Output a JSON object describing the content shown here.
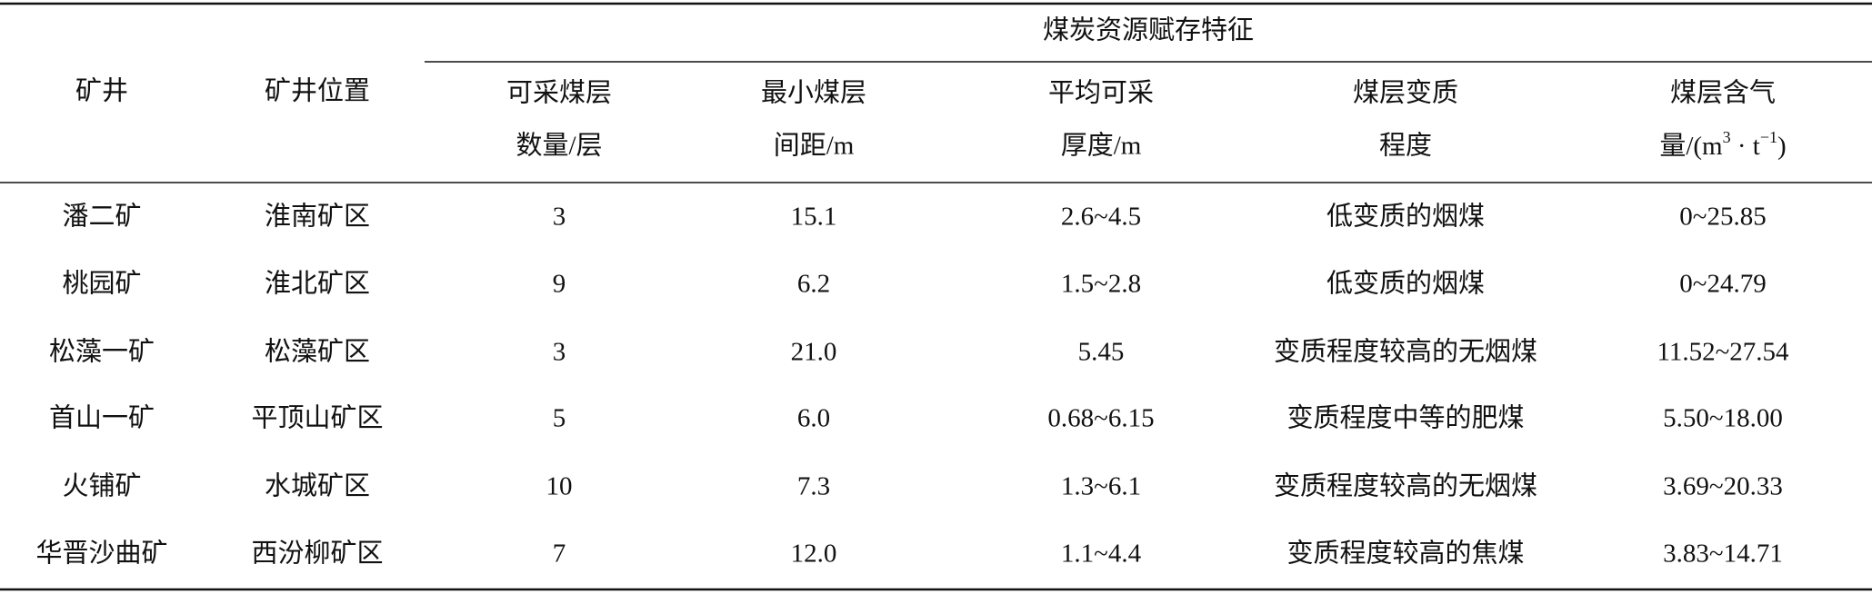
{
  "table": {
    "header": {
      "columns": [
        "矿井",
        "矿井位置"
      ],
      "group": "煤炭资源赋存特征",
      "subcolumns": [
        [
          "可采煤层",
          "数量/层"
        ],
        [
          "最小煤层",
          "间距/m"
        ],
        [
          "平均可采",
          "厚度/m"
        ],
        [
          "煤层变质",
          "程度"
        ],
        [
          "煤层含气",
          [
            "量/(m",
            "3",
            " · t",
            "−1",
            ")"
          ]
        ]
      ]
    },
    "rows": [
      [
        "潘二矿",
        "淮南矿区",
        "3",
        "15.1",
        "2.6~4.5",
        "低变质的烟煤",
        "0~25.85"
      ],
      [
        "桃园矿",
        "淮北矿区",
        "9",
        "6.2",
        "1.5~2.8",
        "低变质的烟煤",
        "0~24.79"
      ],
      [
        "松藻一矿",
        "松藻矿区",
        "3",
        "21.0",
        "5.45",
        "变质程度较高的无烟煤",
        "11.52~27.54"
      ],
      [
        "首山一矿",
        "平顶山矿区",
        "5",
        "6.0",
        "0.68~6.15",
        "变质程度中等的肥煤",
        "5.50~18.00"
      ],
      [
        "火铺矿",
        "水城矿区",
        "10",
        "7.3",
        "1.3~6.1",
        "变质程度较高的无烟煤",
        "3.69~20.33"
      ],
      [
        "华晋沙曲矿",
        "西汾柳矿区",
        "7",
        "12.0",
        "1.1~4.4",
        "变质程度较高的焦煤",
        "3.83~14.71"
      ]
    ]
  }
}
